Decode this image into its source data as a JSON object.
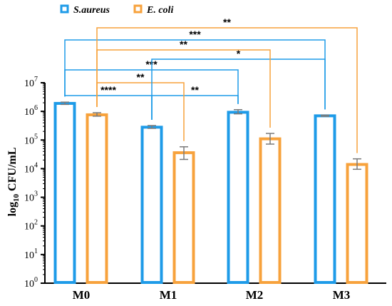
{
  "chart_data": {
    "type": "bar",
    "yscale": "log",
    "ylim": [
      1,
      10000000
    ],
    "ylabel": {
      "pre": "log",
      "sub": "10",
      "post": " CFU/mL"
    },
    "yticks": [
      {
        "value": 1,
        "base": "10",
        "exp": "0"
      },
      {
        "value": 10,
        "base": "10",
        "exp": "1"
      },
      {
        "value": 100,
        "base": "10",
        "exp": "2"
      },
      {
        "value": 1000,
        "base": "10",
        "exp": "3"
      },
      {
        "value": 10000,
        "base": "10",
        "exp": "4"
      },
      {
        "value": 100000,
        "base": "10",
        "exp": "5"
      },
      {
        "value": 1000000,
        "base": "10",
        "exp": "6"
      },
      {
        "value": 10000000,
        "base": "10",
        "exp": "7"
      }
    ],
    "categories": [
      "M0",
      "M1",
      "M2",
      "M3"
    ],
    "series": [
      {
        "name": "S.aureus",
        "color": "#1e9be8",
        "values": [
          1900000,
          280000,
          930000,
          700000
        ],
        "err_low": [
          1750000,
          255000,
          820000,
          670000
        ],
        "err_high": [
          2100000,
          320000,
          1150000,
          740000
        ]
      },
      {
        "name": "E. coli",
        "color": "#f7a23c",
        "values": [
          760000,
          36000,
          110000,
          14000
        ],
        "err_low": [
          680000,
          21000,
          72000,
          9500
        ],
        "err_high": [
          900000,
          58000,
          170000,
          22000
        ]
      }
    ],
    "legend": "top-left",
    "significance": [
      {
        "series": 0,
        "from": 0,
        "to": 1,
        "label": "****"
      },
      {
        "series": 0,
        "from": 1,
        "to": 2,
        "label": "**"
      },
      {
        "series": 1,
        "from": 0,
        "to": 1,
        "label": "**"
      },
      {
        "series": 0,
        "from": 0,
        "to": 2,
        "label": "***"
      },
      {
        "series": 0,
        "from": 1,
        "to": 3,
        "label": "*"
      },
      {
        "series": 1,
        "from": 0,
        "to": 2,
        "label": "**"
      },
      {
        "series": 0,
        "from": 0,
        "to": 3,
        "label": "***"
      },
      {
        "series": 1,
        "from": 0,
        "to": 3,
        "label": "**"
      }
    ]
  }
}
